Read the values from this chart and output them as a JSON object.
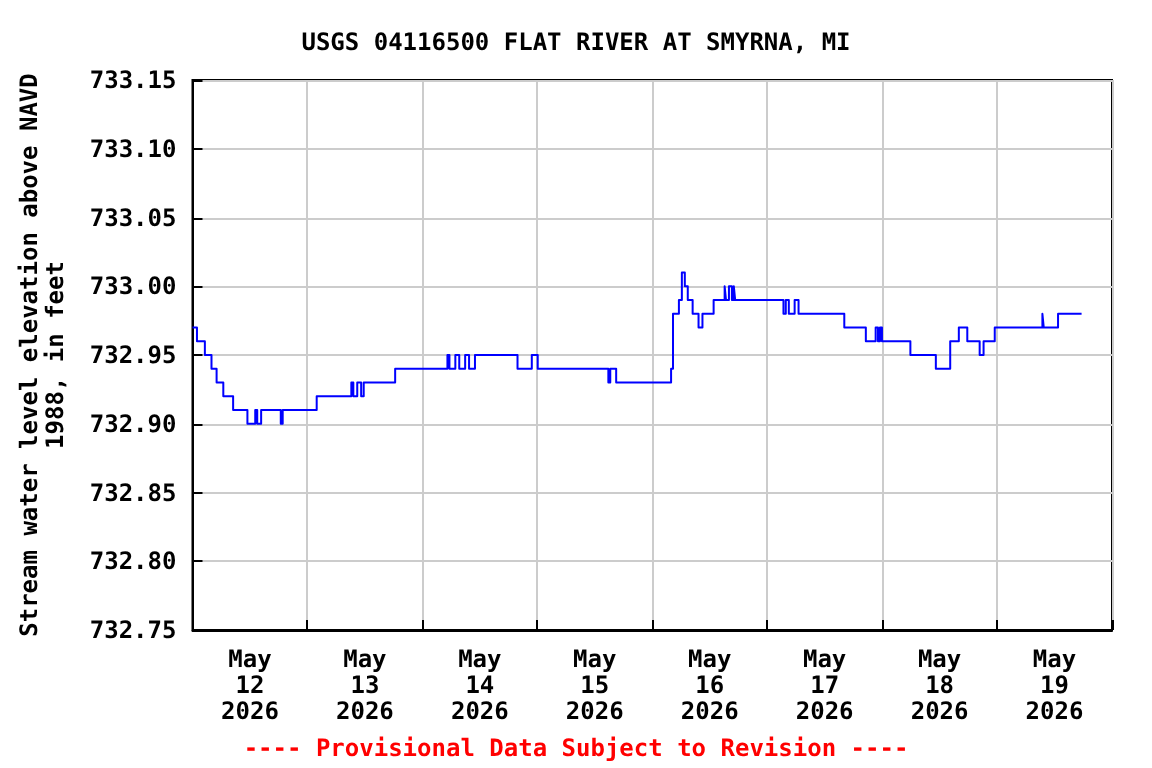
{
  "chart_data": {
    "type": "step",
    "title": "USGS 04116500 FLAT RIVER AT SMYRNA, MI",
    "ylabel": "Stream water level elevation above NAVD\n1988, in feet",
    "annotations": [
      "---- Provisional Data Subject to Revision ----"
    ],
    "x": [
      "2026-05-12T00:00",
      "2026-05-12T00:56",
      "2026-05-12T02:35",
      "2026-05-12T03:58",
      "2026-05-12T05:02",
      "2026-05-12T06:26",
      "2026-05-12T08:29",
      "2026-05-12T11:28",
      "2026-05-12T13:06",
      "2026-05-12T13:31",
      "2026-05-12T14:20",
      "2026-05-12T18:26",
      "2026-05-12T18:50",
      "2026-05-13T01:56",
      "2026-05-13T09:10",
      "2026-05-13T09:35",
      "2026-05-13T10:24",
      "2026-05-13T11:13",
      "2026-05-13T11:45",
      "2026-05-13T18:19",
      "2026-05-14T05:14",
      "2026-05-14T05:39",
      "2026-05-14T06:53",
      "2026-05-14T07:42",
      "2026-05-14T08:56",
      "2026-05-14T09:45",
      "2026-05-14T10:59",
      "2026-05-14T19:52",
      "2026-05-14T22:51",
      "2026-05-15T00:05",
      "2026-05-15T14:50",
      "2026-05-15T15:14",
      "2026-05-15T16:28",
      "2026-05-16T03:56",
      "2026-05-16T04:20",
      "2026-05-16T05:34",
      "2026-05-16T06:11",
      "2026-05-16T06:48",
      "2026-05-16T07:25",
      "2026-05-16T08:26",
      "2026-05-16T09:40",
      "2026-05-16T10:29",
      "2026-05-16T12:49",
      "2026-05-16T15:07",
      "2026-05-16T15:24",
      "2026-05-16T16:01",
      "2026-05-16T16:38",
      "2026-05-16T17:02",
      "2026-05-16T17:19",
      "2026-05-17T03:24",
      "2026-05-17T03:53",
      "2026-05-17T04:31",
      "2026-05-17T05:44",
      "2026-05-17T06:33",
      "2026-05-17T16:06",
      "2026-05-17T20:36",
      "2026-05-17T22:39",
      "2026-05-17T23:08",
      "2026-05-17T23:33",
      "2026-05-17T23:58",
      "2026-05-18T05:54",
      "2026-05-18T11:13",
      "2026-05-18T14:13",
      "2026-05-18T16:01",
      "2026-05-18T17:47",
      "2026-05-18T20:22",
      "2026-05-18T21:11",
      "2026-05-18T23:31",
      "2026-05-19T09:28",
      "2026-05-19T09:45",
      "2026-05-19T12:44",
      "2026-05-19T17:39"
    ],
    "series": [
      {
        "color": "#0000ff",
        "values": [
          732.97,
          732.96,
          732.95,
          732.94,
          732.93,
          732.92,
          732.91,
          732.9,
          732.91,
          732.9,
          732.91,
          732.9,
          732.91,
          732.92,
          732.93,
          732.92,
          732.93,
          732.92,
          732.93,
          732.94,
          732.95,
          732.94,
          732.95,
          732.94,
          732.95,
          732.94,
          732.95,
          732.94,
          732.95,
          732.94,
          732.93,
          732.94,
          732.93,
          732.94,
          732.98,
          732.99,
          733.01,
          733.0,
          732.99,
          732.98,
          732.97,
          732.98,
          732.99,
          733.0,
          732.99,
          733.0,
          732.99,
          733.0,
          732.99,
          732.98,
          732.99,
          732.98,
          732.99,
          732.98,
          732.97,
          732.96,
          732.97,
          732.96,
          732.97,
          732.96,
          732.95,
          732.94,
          732.96,
          732.97,
          732.96,
          732.95,
          732.96,
          732.97,
          732.98,
          732.97,
          732.98,
          732.98
        ]
      }
    ],
    "xlim": [
      "2026-05-12T00:00",
      "2026-05-20T00:00"
    ],
    "xticks": [
      {
        "value": "2026-05-12T00:00",
        "label": null
      },
      {
        "value": "2026-05-12T12:00",
        "label": "May\n12\n2026"
      },
      {
        "value": "2026-05-13T00:00",
        "label": null
      },
      {
        "value": "2026-05-13T12:00",
        "label": "May\n13\n2026"
      },
      {
        "value": "2026-05-14T00:00",
        "label": null
      },
      {
        "value": "2026-05-14T12:00",
        "label": "May\n14\n2026"
      },
      {
        "value": "2026-05-15T00:00",
        "label": null
      },
      {
        "value": "2026-05-15T12:00",
        "label": "May\n15\n2026"
      },
      {
        "value": "2026-05-16T00:00",
        "label": null
      },
      {
        "value": "2026-05-16T12:00",
        "label": "May\n16\n2026"
      },
      {
        "value": "2026-05-17T00:00",
        "label": null
      },
      {
        "value": "2026-05-17T12:00",
        "label": "May\n17\n2026"
      },
      {
        "value": "2026-05-18T00:00",
        "label": null
      },
      {
        "value": "2026-05-18T12:00",
        "label": "May\n18\n2026"
      },
      {
        "value": "2026-05-19T00:00",
        "label": null
      },
      {
        "value": "2026-05-19T12:00",
        "label": "May\n19\n2026"
      },
      {
        "value": "2026-05-20T00:00",
        "label": null
      }
    ],
    "ylim": [
      732.75,
      733.15
    ],
    "yticks": [
      732.75,
      {
        "value": 732.8,
        "label": "732.80"
      },
      732.85,
      {
        "value": 732.9,
        "label": "732.90"
      },
      732.95,
      {
        "value": 733.0,
        "label": "733.00"
      },
      733.05,
      {
        "value": 733.1,
        "label": "733.10"
      },
      733.15
    ],
    "grid": true
  }
}
